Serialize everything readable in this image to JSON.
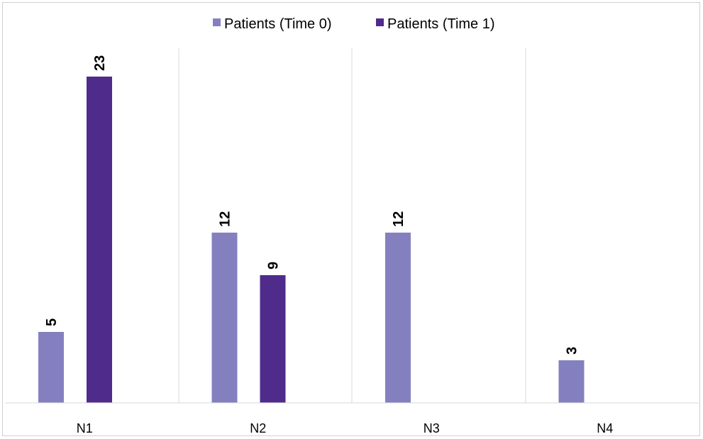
{
  "chart_data": {
    "type": "bar",
    "categories": [
      "N1",
      "N2",
      "N3",
      "N4"
    ],
    "series": [
      {
        "name": "Patients (Time 0)",
        "values": [
          5,
          12,
          12,
          3
        ],
        "color": "#8480bf"
      },
      {
        "name": "Patients (Time 1)",
        "values": [
          23,
          9,
          0,
          0
        ],
        "color": "#4f2b8c"
      }
    ],
    "ylim": [
      0,
      25
    ],
    "grid": "vertical separators between categories",
    "legend_position": "top",
    "data_labels": "rotated, shown above non-zero bars"
  }
}
